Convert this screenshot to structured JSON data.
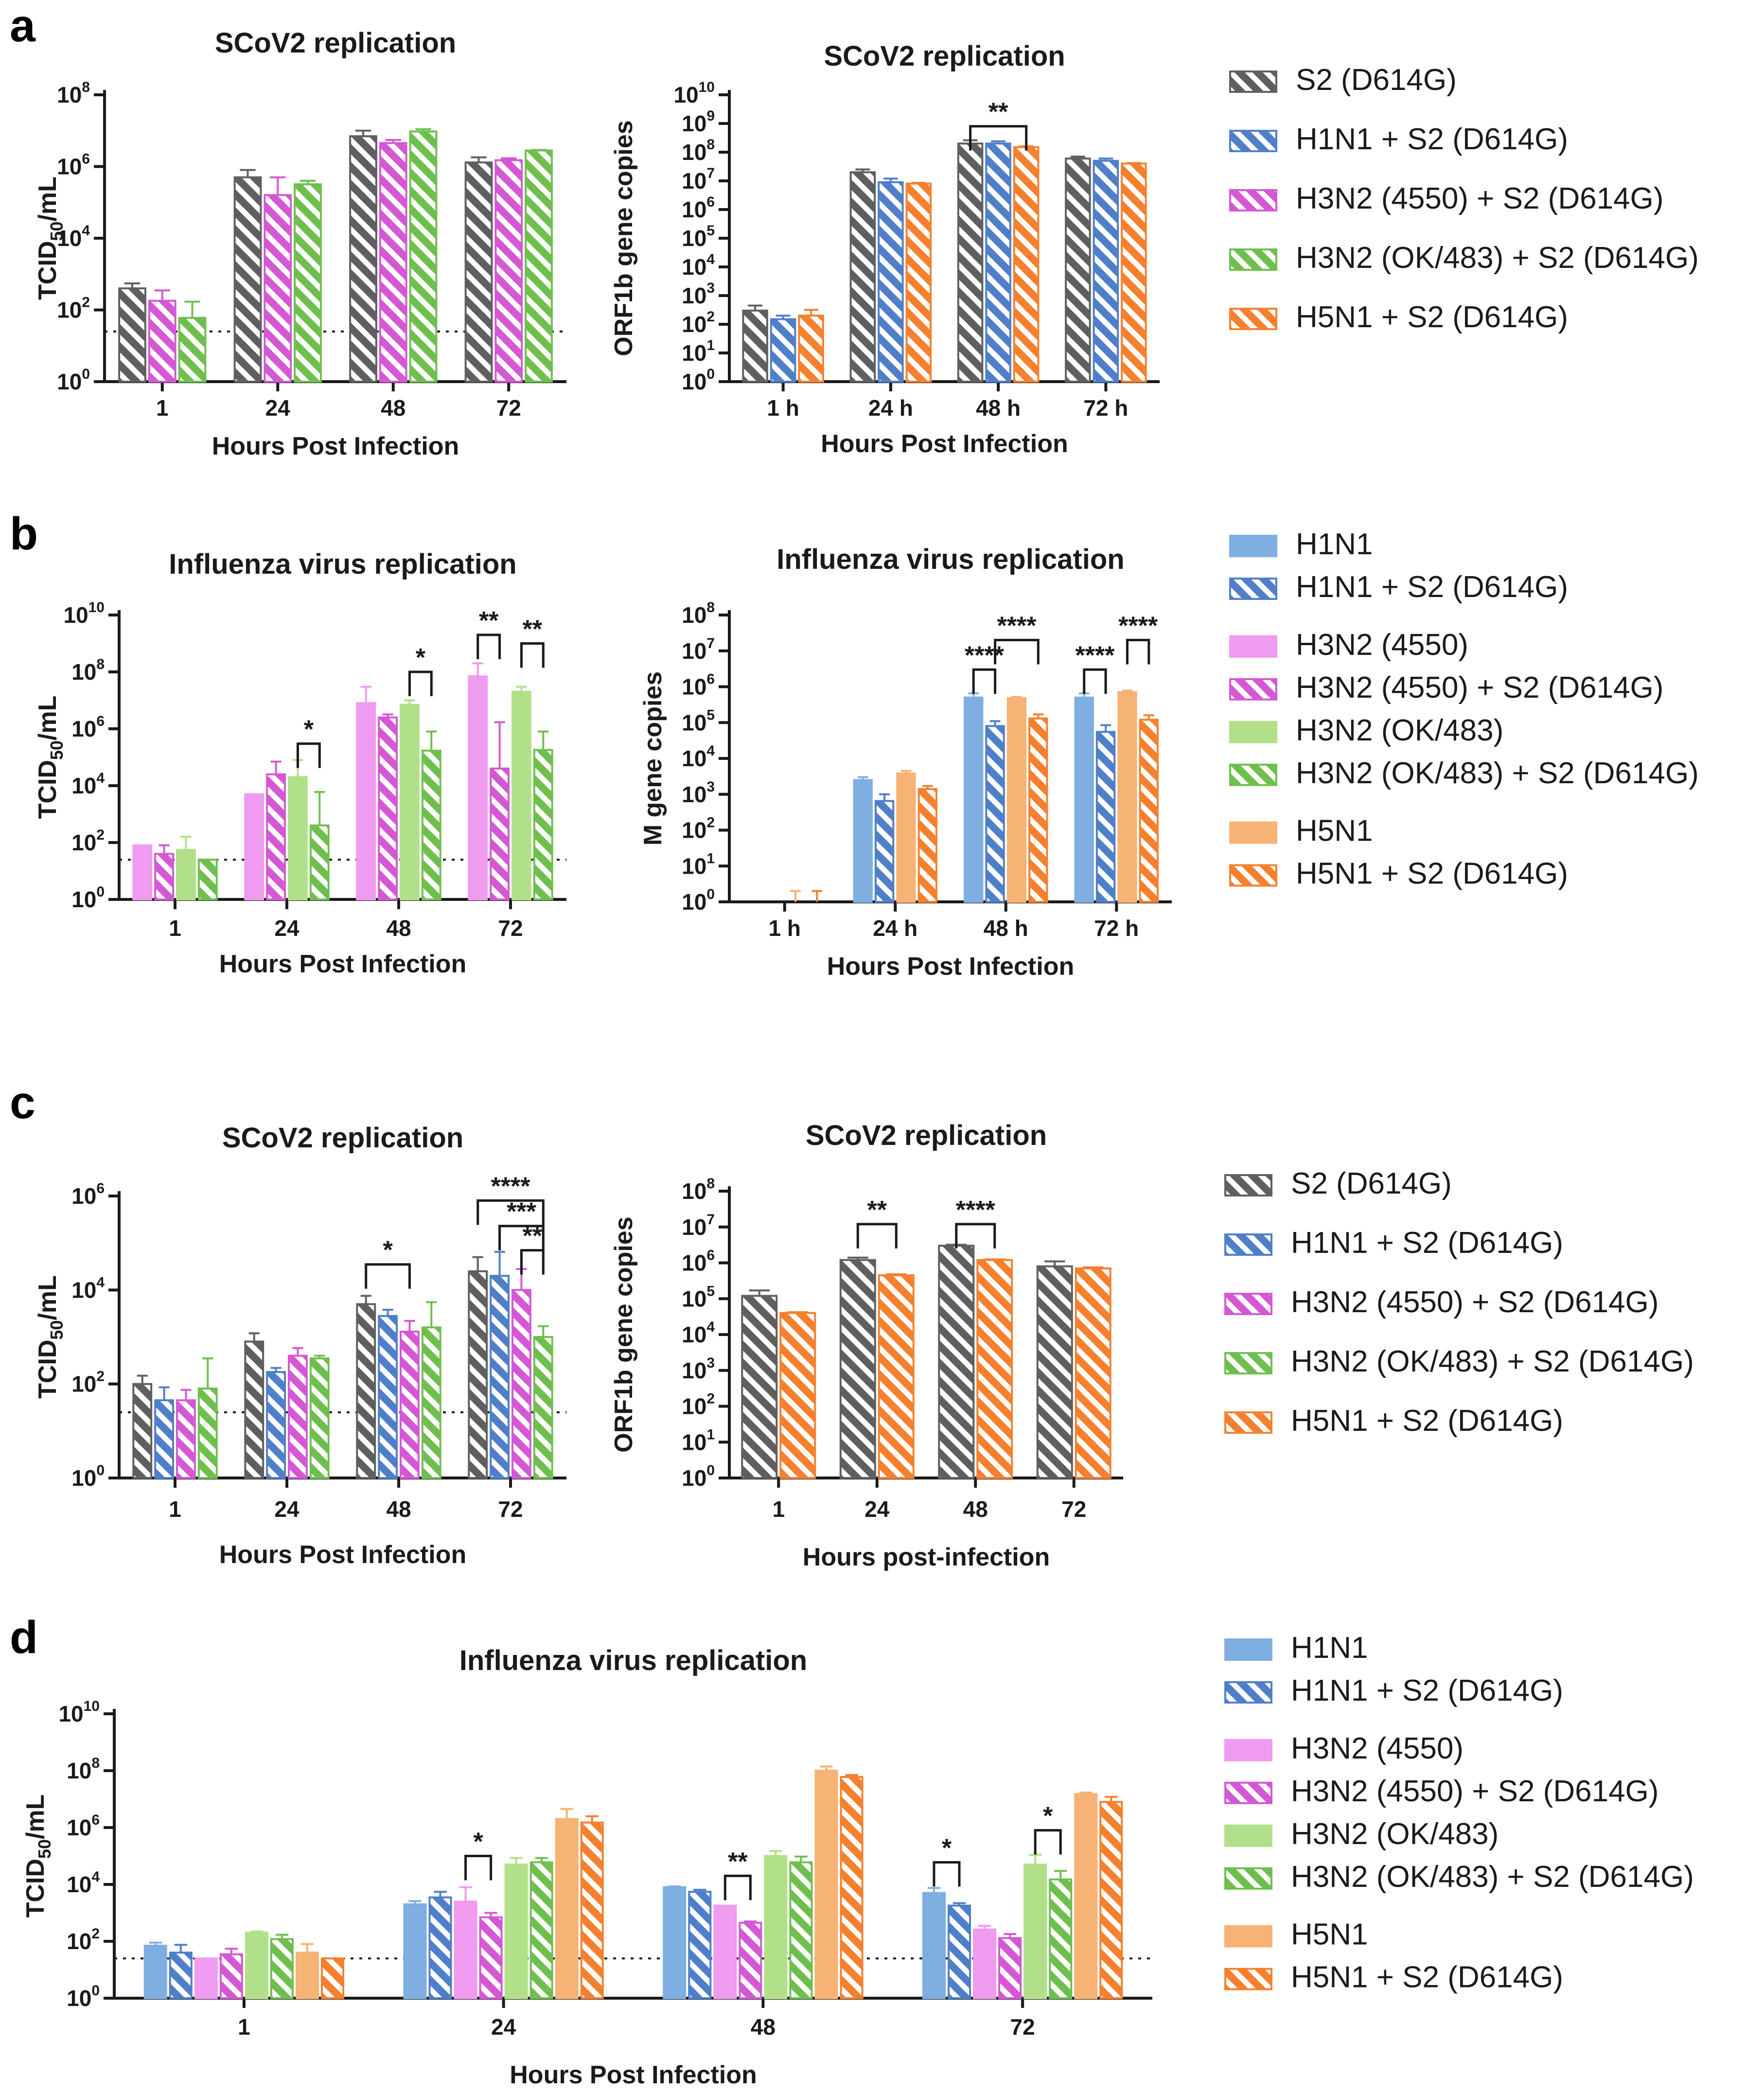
{
  "figure": {
    "panels": [
      {
        "letter": "a"
      },
      {
        "letter": "b"
      },
      {
        "letter": "c"
      },
      {
        "letter": "d"
      }
    ]
  },
  "colors": {
    "S2": "#5f5f5f",
    "H1N1": "#4f7fc8",
    "H3N2_4550": "#d458d4",
    "H3N2_OK483": "#6fbf4f",
    "H5N1": "#f5802e",
    "H1N1_light": "#7faee0",
    "H3N2_4550_light": "#ef9bef",
    "H3N2_OK483_light": "#b2e08a",
    "H5N1_light": "#f7b375"
  },
  "legends": {
    "a": [
      {
        "label": "S2 (D614G)",
        "color": "#5f5f5f",
        "hatch": true
      },
      {
        "label": "H1N1 + S2 (D614G)",
        "color": "#4f7fc8",
        "hatch": true
      },
      {
        "label": "H3N2 (4550) + S2 (D614G)",
        "color": "#d458d4",
        "hatch": true
      },
      {
        "label": "H3N2 (OK/483) + S2 (D614G)",
        "color": "#6fbf4f",
        "hatch": true
      },
      {
        "label": "H5N1 + S2 (D614G)",
        "color": "#f5802e",
        "hatch": true
      }
    ],
    "b": [
      {
        "label": "H1N1",
        "color": "#7faee0",
        "hatch": false
      },
      {
        "label": "H1N1 + S2 (D614G)",
        "color": "#4f7fc8",
        "hatch": true
      },
      {
        "label": "H3N2 (4550)",
        "color": "#ef9bef",
        "hatch": false
      },
      {
        "label": "H3N2 (4550) + S2 (D614G)",
        "color": "#d458d4",
        "hatch": true
      },
      {
        "label": "H3N2 (OK/483)",
        "color": "#b2e08a",
        "hatch": false
      },
      {
        "label": "H3N2 (OK/483) + S2 (D614G)",
        "color": "#6fbf4f",
        "hatch": true
      },
      {
        "label": "H5N1",
        "color": "#f7b375",
        "hatch": false
      },
      {
        "label": "H5N1 + S2 (D614G)",
        "color": "#f5802e",
        "hatch": true
      }
    ],
    "c": [
      {
        "label": "S2 (D614G)",
        "color": "#5f5f5f",
        "hatch": true
      },
      {
        "label": "H1N1 + S2 (D614G)",
        "color": "#4f7fc8",
        "hatch": true
      },
      {
        "label": "H3N2 (4550) + S2 (D614G)",
        "color": "#d458d4",
        "hatch": true
      },
      {
        "label": "H3N2 (OK/483) + S2 (D614G)",
        "color": "#6fbf4f",
        "hatch": true
      },
      {
        "label": "H5N1 + S2 (D614G)",
        "color": "#f5802e",
        "hatch": true
      }
    ],
    "d": [
      {
        "label": "H1N1",
        "color": "#7faee0",
        "hatch": false
      },
      {
        "label": "H1N1 + S2 (D614G)",
        "color": "#4f7fc8",
        "hatch": true
      },
      {
        "label": "H3N2 (4550)",
        "color": "#ef9bef",
        "hatch": false
      },
      {
        "label": "H3N2 (4550) + S2 (D614G)",
        "color": "#d458d4",
        "hatch": true
      },
      {
        "label": "H3N2 (OK/483)",
        "color": "#b2e08a",
        "hatch": false
      },
      {
        "label": "H3N2 (OK/483) + S2 (D614G)",
        "color": "#6fbf4f",
        "hatch": true
      },
      {
        "label": "H5N1",
        "color": "#f7b375",
        "hatch": false
      },
      {
        "label": "H5N1 + S2 (D614G)",
        "color": "#f5802e",
        "hatch": true
      }
    ]
  },
  "chart_data": [
    {
      "id": "a1",
      "panel": "a",
      "type": "bar",
      "title": "SCoV2 replication",
      "xlabel": "Hours Post Infection",
      "ylabel": "TCID50/mL",
      "yscale": "log",
      "ylim_exp": [
        0,
        8
      ],
      "yticks_exp": [
        0,
        2,
        4,
        6,
        8
      ],
      "detection_limit": 25,
      "categories": [
        "1",
        "24",
        "48",
        "72"
      ],
      "series": [
        {
          "name": "S2 (D614G)",
          "color": "#5f5f5f",
          "hatch": true,
          "values": [
            400,
            500000,
            7000000,
            1300000
          ],
          "errors": [
            550,
            800000,
            10000000,
            1800000
          ]
        },
        {
          "name": "H3N2 (4550) + S2 (D614G)",
          "color": "#d458d4",
          "hatch": true,
          "values": [
            180,
            160000,
            4500000,
            1500000
          ],
          "errors": [
            350,
            500000,
            5500000,
            1700000
          ]
        },
        {
          "name": "H3N2 (OK/483) + S2 (D614G)",
          "color": "#6fbf4f",
          "hatch": true,
          "values": [
            60,
            320000,
            9500000,
            2800000
          ],
          "errors": [
            170,
            400000,
            11000000,
            2900000
          ]
        }
      ],
      "significance": []
    },
    {
      "id": "a2",
      "panel": "a",
      "type": "bar",
      "title": "SCoV2 replication",
      "xlabel": "Hours Post Infection",
      "ylabel": "ORF1b gene copies",
      "yscale": "log",
      "ylim_exp": [
        0,
        10
      ],
      "yticks_exp": [
        0,
        1,
        2,
        3,
        4,
        5,
        6,
        7,
        8,
        9,
        10
      ],
      "categories": [
        "1 h",
        "24 h",
        "48 h",
        "72 h"
      ],
      "series": [
        {
          "name": "S2 (D614G)",
          "color": "#5f5f5f",
          "hatch": true,
          "values": [
            300,
            20000000,
            200000000,
            60000000
          ],
          "errors": [
            450,
            25000000,
            260000000,
            70000000
          ]
        },
        {
          "name": "H1N1 + S2 (D614G)",
          "color": "#4f7fc8",
          "hatch": true,
          "values": [
            150,
            9000000,
            200000000,
            50000000
          ],
          "errors": [
            200,
            12000000,
            240000000,
            60000000
          ]
        },
        {
          "name": "H5N1 + S2 (D614G)",
          "color": "#f5802e",
          "hatch": true,
          "values": [
            200,
            8000000,
            150000000,
            40000000
          ],
          "errors": [
            320,
            8500000,
            160000000,
            42000000
          ]
        }
      ],
      "significance": [
        {
          "category": 2,
          "from": 0,
          "to": 2,
          "label": "**",
          "y": 800000000
        }
      ]
    },
    {
      "id": "b1",
      "panel": "b",
      "type": "bar",
      "title": "Influenza virus replication",
      "xlabel": "Hours Post Infection",
      "ylabel": "TCID50/mL",
      "yscale": "log",
      "ylim_exp": [
        0,
        10
      ],
      "yticks_exp": [
        0,
        2,
        4,
        6,
        8,
        10
      ],
      "detection_limit": 25,
      "categories": [
        "1",
        "24",
        "48",
        "72"
      ],
      "series": [
        {
          "name": "H3N2 (4550)",
          "color": "#ef9bef",
          "hatch": false,
          "values": [
            80,
            5000,
            8000000,
            70000000
          ],
          "errors": [
            80,
            5000,
            30000000,
            200000000
          ]
        },
        {
          "name": "H3N2 (4550) + S2 (D614G)",
          "color": "#d458d4",
          "hatch": true,
          "values": [
            40,
            25000,
            2500000,
            40000
          ],
          "errors": [
            80,
            70000,
            3200000,
            1700000
          ]
        },
        {
          "name": "H3N2 (OK/483)",
          "color": "#b2e08a",
          "hatch": false,
          "values": [
            55,
            20000,
            7000000,
            20000000
          ],
          "errors": [
            160,
            80000,
            10000000,
            30000000
          ]
        },
        {
          "name": "H3N2 (OK/483) + S2 (D614G)",
          "color": "#6fbf4f",
          "hatch": true,
          "values": [
            25,
            400,
            170000,
            180000
          ],
          "errors": [
            25,
            6000,
            800000,
            800000
          ]
        }
      ],
      "significance": [
        {
          "category": 1,
          "from": 2,
          "to": 3,
          "label": "*",
          "y": 300000
        },
        {
          "category": 2,
          "from": 2,
          "to": 3,
          "label": "*",
          "y": 100000000
        },
        {
          "category": 3,
          "from": 0,
          "to": 1,
          "label": "**",
          "y": 2000000000
        },
        {
          "category": 3,
          "from": 2,
          "to": 3,
          "label": "**",
          "y": 1000000000
        }
      ]
    },
    {
      "id": "b2",
      "panel": "b",
      "type": "bar",
      "title": "Influenza virus replication",
      "xlabel": "Hours Post Infection",
      "ylabel": "M gene copies",
      "yscale": "log",
      "ylim_exp": [
        0,
        8
      ],
      "yticks_exp": [
        0,
        1,
        2,
        3,
        4,
        5,
        6,
        7,
        8
      ],
      "categories": [
        "1 h",
        "24 h",
        "48 h",
        "72 h"
      ],
      "series": [
        {
          "name": "H1N1",
          "color": "#7faee0",
          "hatch": false,
          "values": [
            1,
            2500,
            500000,
            500000
          ],
          "errors": [
            1,
            3000,
            650000,
            650000
          ]
        },
        {
          "name": "H1N1 + S2 (D614G)",
          "color": "#4f7fc8",
          "hatch": true,
          "values": [
            1,
            650,
            80000,
            55000
          ],
          "errors": [
            1,
            1000,
            110000,
            85000
          ]
        },
        {
          "name": "H5N1",
          "color": "#f7b375",
          "hatch": false,
          "values": [
            1,
            3800,
            480000,
            700000
          ],
          "errors": [
            2,
            4500,
            520000,
            780000
          ]
        },
        {
          "name": "H5N1 + S2 (D614G)",
          "color": "#f5802e",
          "hatch": true,
          "values": [
            1,
            1400,
            130000,
            120000
          ],
          "errors": [
            2,
            1700,
            170000,
            160000
          ]
        }
      ],
      "significance": [
        {
          "category": 2,
          "from": 0,
          "to": 1,
          "label": "****",
          "y": 3000000
        },
        {
          "category": 2,
          "from": 1,
          "to": 3,
          "label": "****",
          "y": 20000000
        },
        {
          "category": 3,
          "from": 0,
          "to": 1,
          "label": "****",
          "y": 3000000
        },
        {
          "category": 3,
          "from": 2,
          "to": 3,
          "label": "****",
          "y": 20000000
        }
      ]
    },
    {
      "id": "c1",
      "panel": "c",
      "type": "bar",
      "title": "SCoV2 replication",
      "xlabel": "Hours Post Infection",
      "ylabel": "TCID50/mL",
      "yscale": "log",
      "ylim_exp": [
        0,
        6
      ],
      "yticks_exp": [
        0,
        2,
        4,
        6
      ],
      "detection_limit": 25,
      "categories": [
        "1",
        "24",
        "48",
        "72"
      ],
      "series": [
        {
          "name": "S2 (D614G)",
          "color": "#5f5f5f",
          "hatch": true,
          "values": [
            100,
            800,
            5000,
            25000
          ],
          "errors": [
            150,
            1200,
            7500,
            50000
          ]
        },
        {
          "name": "H1N1 + S2 (D614G)",
          "color": "#4f7fc8",
          "hatch": true,
          "values": [
            45,
            180,
            2800,
            20000
          ],
          "errors": [
            85,
            220,
            3800,
            65000
          ]
        },
        {
          "name": "H3N2 (4550) + S2 (D614G)",
          "color": "#d458d4",
          "hatch": true,
          "values": [
            45,
            400,
            1300,
            10000
          ],
          "errors": [
            75,
            580,
            2200,
            28000
          ]
        },
        {
          "name": "H3N2 (OK/483) + S2 (D614G)",
          "color": "#6fbf4f",
          "hatch": true,
          "values": [
            80,
            350,
            1600,
            1000
          ],
          "errors": [
            350,
            400,
            5500,
            1700
          ]
        }
      ],
      "significance": [
        {
          "category": 2,
          "from": 0,
          "to": 2,
          "label": "*",
          "y": 35000
        },
        {
          "category": 3,
          "from": 0,
          "to": 3,
          "label": "****",
          "y": 800000
        },
        {
          "category": 3,
          "from": 1,
          "to": 3,
          "label": "***",
          "y": 230000
        },
        {
          "category": 3,
          "from": 2,
          "to": 3,
          "label": "**",
          "y": 70000
        }
      ]
    },
    {
      "id": "c2",
      "panel": "c",
      "type": "bar",
      "title": "SCoV2 replication",
      "xlabel": "Hours post-infection",
      "ylabel": "ORF1b gene copies",
      "yscale": "log",
      "ylim_exp": [
        0,
        8
      ],
      "yticks_exp": [
        0,
        1,
        2,
        3,
        4,
        5,
        6,
        7,
        8
      ],
      "categories": [
        "1",
        "24",
        "48",
        "72"
      ],
      "series": [
        {
          "name": "S2 (D614G)",
          "color": "#5f5f5f",
          "hatch": true,
          "values": [
            120000,
            1200000,
            3000000,
            800000
          ],
          "errors": [
            170000,
            1400000,
            3200000,
            1100000
          ]
        },
        {
          "name": "H5N1 + S2 (D614G)",
          "color": "#f5802e",
          "hatch": true,
          "values": [
            40000,
            450000,
            1200000,
            700000
          ],
          "errors": [
            42000,
            480000,
            1250000,
            750000
          ]
        }
      ],
      "significance": [
        {
          "category": 1,
          "from": 0,
          "to": 1,
          "label": "**",
          "y": 12000000
        },
        {
          "category": 2,
          "from": 0,
          "to": 1,
          "label": "****",
          "y": 12000000
        }
      ]
    },
    {
      "id": "d1",
      "panel": "d",
      "type": "bar",
      "title": "Influenza virus replication",
      "xlabel": "Hours Post Infection",
      "ylabel": "TCID50/mL",
      "yscale": "log",
      "ylim_exp": [
        0,
        10
      ],
      "yticks_exp": [
        0,
        2,
        4,
        6,
        8,
        10
      ],
      "detection_limit": 25,
      "categories": [
        "1",
        "24",
        "48",
        "72"
      ],
      "series": [
        {
          "name": "H1N1",
          "color": "#7faee0",
          "hatch": false,
          "values": [
            70,
            2000,
            8000,
            5000
          ],
          "errors": [
            90,
            2600,
            8500,
            7500
          ]
        },
        {
          "name": "H1N1 + S2 (D614G)",
          "color": "#4f7fc8",
          "hatch": true,
          "values": [
            40,
            3500,
            5500,
            1800
          ],
          "errors": [
            75,
            5500,
            6500,
            2200
          ]
        },
        {
          "name": "H3N2 (4550)",
          "color": "#ef9bef",
          "hatch": false,
          "values": [
            25,
            2500,
            1800,
            260
          ],
          "errors": [
            25,
            8000,
            1800,
            350
          ]
        },
        {
          "name": "H3N2 (4550) + S2 (D614G)",
          "color": "#d458d4",
          "hatch": true,
          "values": [
            35,
            700,
            450,
            130
          ],
          "errors": [
            55,
            1000,
            500,
            180
          ]
        },
        {
          "name": "H3N2 (OK/483)",
          "color": "#b2e08a",
          "hatch": false,
          "values": [
            200,
            50000,
            100000,
            50000
          ],
          "errors": [
            220,
            85000,
            150000,
            110000
          ]
        },
        {
          "name": "H3N2 (OK/483) + S2 (D614G)",
          "color": "#6fbf4f",
          "hatch": true,
          "values": [
            120,
            60000,
            60000,
            15000
          ],
          "errors": [
            170,
            85000,
            95000,
            30000
          ]
        },
        {
          "name": "H5N1",
          "color": "#f7b375",
          "hatch": false,
          "values": [
            40,
            2000000,
            100000000,
            15000000
          ],
          "errors": [
            80,
            4500000,
            140000000,
            17000000
          ]
        },
        {
          "name": "H5N1 + S2 (D614G)",
          "color": "#f5802e",
          "hatch": true,
          "values": [
            25,
            1500000,
            60000000,
            8000000
          ],
          "errors": [
            25,
            2500000,
            70000000,
            12000000
          ]
        }
      ],
      "significance": [
        {
          "category": 1,
          "from": 2,
          "to": 3,
          "label": "*",
          "y": 100000
        },
        {
          "category": 2,
          "from": 2,
          "to": 3,
          "label": "**",
          "y": 20000
        },
        {
          "category": 3,
          "from": 0,
          "to": 1,
          "label": "*",
          "y": 60000
        },
        {
          "category": 3,
          "from": 4,
          "to": 5,
          "label": "*",
          "y": 800000
        }
      ]
    }
  ]
}
